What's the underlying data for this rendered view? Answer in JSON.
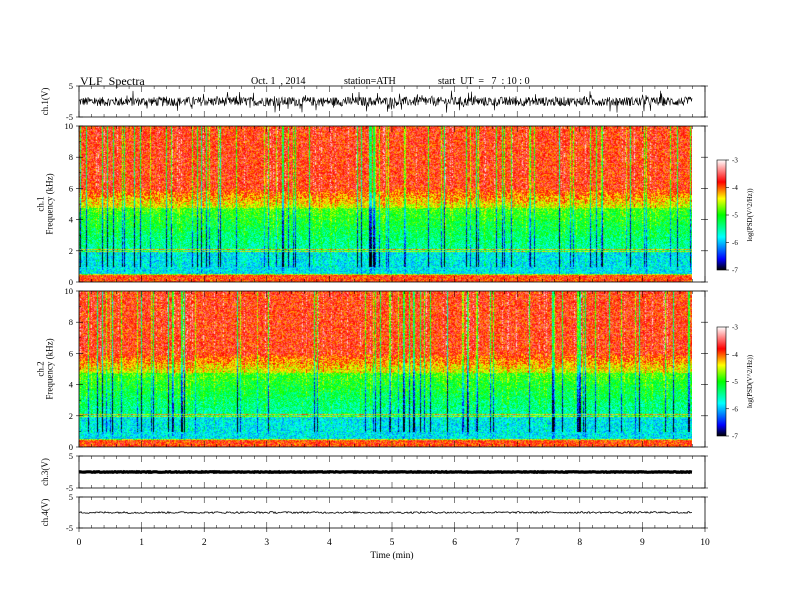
{
  "header": {
    "title": "VLF  Spectra",
    "date": "Oct. 1  , 2014",
    "station": "station=ATH",
    "start": "start  UT  =   7  : 10 : 0"
  },
  "chart_data": [
    {
      "type": "line",
      "panel": "ch1-waveform",
      "ylabel": "ch.1(V)",
      "ylim": [
        -5,
        5
      ],
      "yticks": [
        "5",
        "-5"
      ],
      "series_amplitude_v": 1.5,
      "color": "#000000"
    },
    {
      "type": "heatmap",
      "panel": "ch1-spectrogram",
      "ylabel": "ch.1\nFrequency  (kHz)",
      "ylim": [
        0,
        10
      ],
      "yticks": [
        "0",
        "2",
        "4",
        "6",
        "8",
        "10"
      ],
      "zlabel": "log(PSD(V^2/Hz))",
      "zlim": [
        -7,
        -3
      ],
      "zticks": [
        "-3",
        "-4",
        "-5",
        "-6",
        "-7"
      ],
      "colormap": [
        "#000000",
        "#0000ff",
        "#00ffff",
        "#00ff00",
        "#ffff00",
        "#ff0000",
        "#ffffff"
      ]
    },
    {
      "type": "heatmap",
      "panel": "ch2-spectrogram",
      "ylabel": "ch.2\nFrequency  (kHz)",
      "ylim": [
        0,
        10
      ],
      "yticks": [
        "0",
        "2",
        "4",
        "6",
        "8",
        "10"
      ],
      "zlabel": "log(PSD(V^2/Hz))",
      "zlim": [
        -7,
        -3
      ],
      "zticks": [
        "-3",
        "-4",
        "-5",
        "-6",
        "-7"
      ],
      "colormap": [
        "#000000",
        "#0000ff",
        "#00ffff",
        "#00ff00",
        "#ffff00",
        "#ff0000",
        "#ffffff"
      ]
    },
    {
      "type": "line",
      "panel": "ch3-waveform",
      "ylabel": "ch.3(V)",
      "ylim": [
        -5,
        5
      ],
      "yticks": [
        "5",
        "-5"
      ],
      "series_amplitude_v": 0.1,
      "color": "#000000"
    },
    {
      "type": "line",
      "panel": "ch4-waveform",
      "ylabel": "ch.4(V)",
      "ylim": [
        -5,
        5
      ],
      "yticks": [
        "5",
        "-5"
      ],
      "series_amplitude_v": 0.3,
      "color": "#000000"
    }
  ],
  "xaxis": {
    "xlabel": "Time  (min)",
    "xlim": [
      0,
      10
    ],
    "data_end": 9.8,
    "ticks": [
      "0",
      "1",
      "2",
      "3",
      "4",
      "5",
      "6",
      "7",
      "8",
      "9",
      "10"
    ]
  }
}
